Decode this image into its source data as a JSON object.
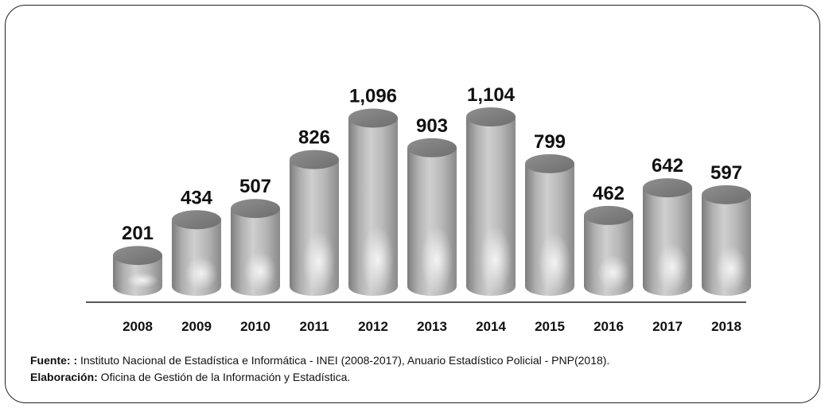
{
  "chart_data": {
    "type": "bar",
    "style": "3d-cylinder",
    "categories": [
      "2008",
      "2009",
      "2010",
      "2011",
      "2012",
      "2013",
      "2014",
      "2015",
      "2016",
      "2017",
      "2018"
    ],
    "values": [
      201,
      434,
      507,
      826,
      1096,
      903,
      1104,
      799,
      462,
      642,
      597
    ],
    "data_labels": [
      "201",
      "434",
      "507",
      "826",
      "1,096",
      "903",
      "1,104",
      "799",
      "462",
      "642",
      "597"
    ],
    "title": "",
    "xlabel": "",
    "ylabel": "",
    "ylim": [
      0,
      1104
    ],
    "grid": false,
    "legend": "none",
    "bar_color": "#a9a9a9"
  },
  "source": {
    "fuente_label": "Fuente: :",
    "fuente_text": " Instituto Nacional de Estadística e Informática - INEI (2008-2017), Anuario Estadístico Policial - PNP(2018).",
    "elaboracion_label": "Elaboración:",
    "elaboracion_text": " Oficina de Gestión de la Información y Estadística."
  }
}
